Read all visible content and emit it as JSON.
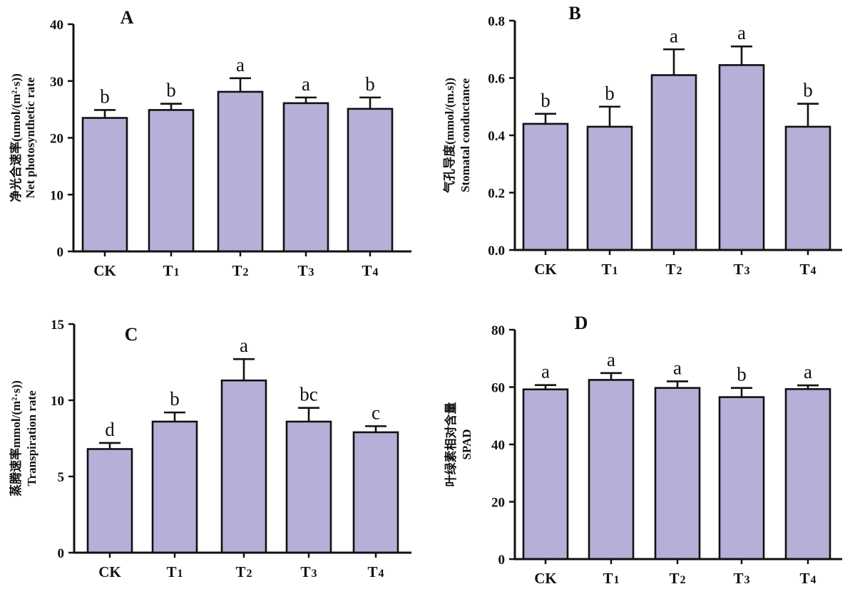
{
  "colors": {
    "bar_fill": "#b6b0d8",
    "axis": "#111111"
  },
  "chart_data": [
    {
      "type": "bar",
      "panel": "A",
      "ylabel_cn": "净光合速率(umol/(m²·s))",
      "ylabel_en": "Net photosynthetic rate",
      "categories": [
        "CK",
        "T1",
        "T2",
        "T3",
        "T4"
      ],
      "category_labels": [
        {
          "main": "CK",
          "sub": ""
        },
        {
          "main": "T",
          "sub": "1"
        },
        {
          "main": "T",
          "sub": "2"
        },
        {
          "main": "T",
          "sub": "3"
        },
        {
          "main": "T",
          "sub": "4"
        }
      ],
      "values": [
        23.5,
        24.9,
        28.1,
        26.1,
        25.1
      ],
      "errors": [
        1.4,
        1.1,
        2.4,
        1.0,
        2.0
      ],
      "significance": [
        "b",
        "b",
        "a",
        "a",
        "b"
      ],
      "ylim": [
        0,
        40
      ],
      "yticks": [
        0,
        10,
        20,
        30,
        40
      ],
      "ytick_labels": [
        "0",
        "10",
        "20",
        "30",
        "40"
      ]
    },
    {
      "type": "bar",
      "panel": "B",
      "ylabel_cn": "气孔导度(mmol/(m.s))",
      "ylabel_en": "Stomatal conductance",
      "categories": [
        "CK",
        "T1",
        "T2",
        "T3",
        "T4"
      ],
      "category_labels": [
        {
          "main": "CK",
          "sub": ""
        },
        {
          "main": "T",
          "sub": "1"
        },
        {
          "main": "T",
          "sub": "2"
        },
        {
          "main": "T",
          "sub": "3"
        },
        {
          "main": "T",
          "sub": "4"
        }
      ],
      "values": [
        0.44,
        0.43,
        0.61,
        0.645,
        0.43
      ],
      "errors": [
        0.035,
        0.07,
        0.09,
        0.065,
        0.08
      ],
      "significance": [
        "b",
        "b",
        "a",
        "a",
        "b"
      ],
      "ylim": [
        0,
        0.8
      ],
      "yticks": [
        0,
        0.2,
        0.4,
        0.6,
        0.8
      ],
      "ytick_labels": [
        "0.0",
        "0.2",
        "0.4",
        "0.6",
        "0.8"
      ]
    },
    {
      "type": "bar",
      "panel": "C",
      "ylabel_cn": "蒸腾速率mmol/(m²·s))",
      "ylabel_en": "Transpiration rate",
      "categories": [
        "CK",
        "T1",
        "T2",
        "T3",
        "T4"
      ],
      "category_labels": [
        {
          "main": "CK",
          "sub": ""
        },
        {
          "main": "T",
          "sub": "1"
        },
        {
          "main": "T",
          "sub": "2"
        },
        {
          "main": "T",
          "sub": "3"
        },
        {
          "main": "T",
          "sub": "4"
        }
      ],
      "values": [
        6.8,
        8.6,
        11.3,
        8.6,
        7.9
      ],
      "errors": [
        0.4,
        0.6,
        1.4,
        0.9,
        0.4
      ],
      "significance": [
        "d",
        "b",
        "a",
        "bc",
        "c"
      ],
      "ylim": [
        0,
        15
      ],
      "yticks": [
        0,
        5,
        10,
        15
      ],
      "ytick_labels": [
        "0",
        "5",
        "10",
        "15"
      ]
    },
    {
      "type": "bar",
      "panel": "D",
      "ylabel_cn": "叶绿素相对含量",
      "ylabel_en": "SPAD",
      "categories": [
        "CK",
        "T1",
        "T2",
        "T3",
        "T4"
      ],
      "category_labels": [
        {
          "main": "CK",
          "sub": ""
        },
        {
          "main": "T",
          "sub": "1"
        },
        {
          "main": "T",
          "sub": "2"
        },
        {
          "main": "T",
          "sub": "3"
        },
        {
          "main": "T",
          "sub": "4"
        }
      ],
      "values": [
        59.2,
        62.5,
        59.7,
        56.5,
        59.3
      ],
      "errors": [
        1.5,
        2.4,
        2.3,
        3.2,
        1.3
      ],
      "significance": [
        "a",
        "a",
        "a",
        "b",
        "a"
      ],
      "ylim": [
        0,
        80
      ],
      "yticks": [
        0,
        20,
        40,
        60,
        80
      ],
      "ytick_labels": [
        "0",
        "20",
        "40",
        "60",
        "80"
      ]
    }
  ]
}
